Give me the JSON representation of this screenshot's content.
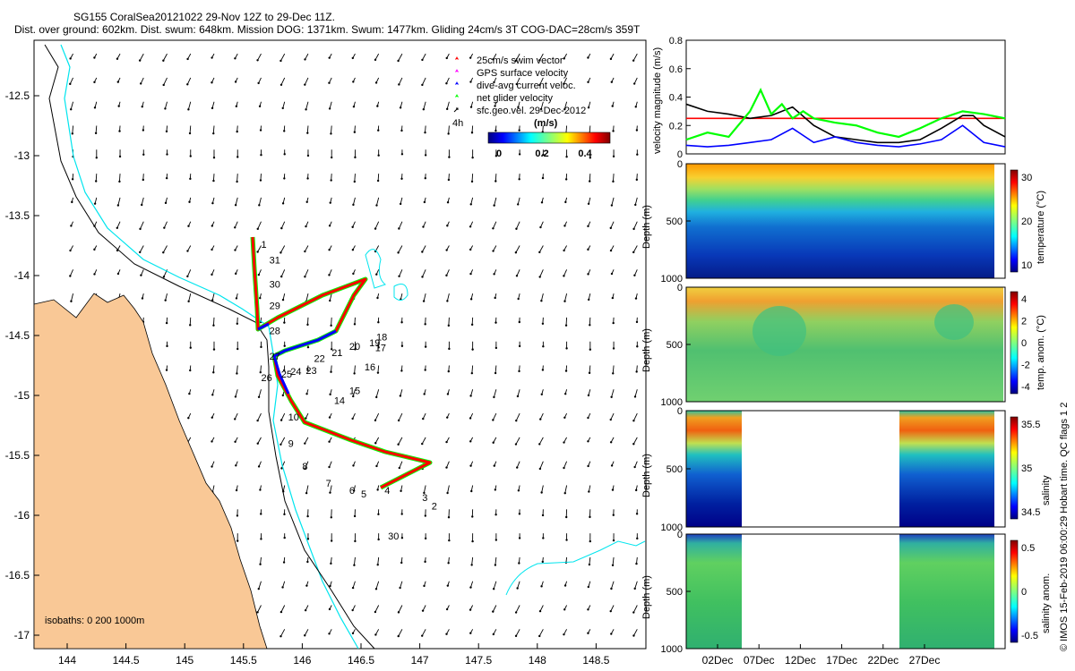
{
  "header": {
    "line1": "SG155 CoralSea20121022 29-Nov 12Z to 29-Dec 11Z.",
    "line2": "Dist. over ground: 602km. Dist. swum: 648km. Mission DOG: 1371km. Swum: 1477km. Gliding 24cm/s 3T COG-DAC=28cm/s 359T"
  },
  "credit": "© IMOS 15-Feb-2019 06:00:29 Hobart time. QC flags 1  2",
  "colors": {
    "land": "#f9c896",
    "isobath200": "#00e5ee",
    "isobath1000": "#000000",
    "track": "#ff0000",
    "dac": "#0000ff",
    "netvel": "#00ff00"
  },
  "map": {
    "legend": [
      {
        "label": "25cm/s swim vector",
        "icon": "red-star"
      },
      {
        "label": "GPS surface velocity",
        "icon": "magenta-star"
      },
      {
        "label": "dive-avg current veloc.",
        "icon": "blue-star"
      },
      {
        "label": "net glider velocity",
        "icon": "green-star"
      },
      {
        "label": "sfc.geo.vel. 29-Dec-2012",
        "icon": "black-arrow"
      }
    ],
    "four_h": "4h",
    "colorbar_title": "(m/s)",
    "colorbar_ticks": [
      "0",
      "0.2",
      "0.4"
    ],
    "isobaths_text": "isobaths: 0   200  1000m",
    "xticks": [
      "144",
      "144.5",
      "145",
      "145.5",
      "146",
      "146.5",
      "147",
      "147.5",
      "148",
      "148.5"
    ],
    "yticks": [
      "-12.5",
      "-13",
      "-13.5",
      "-14",
      "-14.5",
      "-15",
      "-15.5",
      "-16",
      "-16.5",
      "-17"
    ],
    "day_labels": [
      {
        "t": "1",
        "lon": 145.65,
        "lat": -13.77
      },
      {
        "t": "31",
        "lon": 145.72,
        "lat": -13.9
      },
      {
        "t": "30",
        "lon": 145.72,
        "lat": -14.1
      },
      {
        "t": "29",
        "lon": 145.72,
        "lat": -14.28
      },
      {
        "t": "28",
        "lon": 145.72,
        "lat": -14.49
      },
      {
        "t": "27",
        "lon": 145.72,
        "lat": -14.7
      },
      {
        "t": "26",
        "lon": 145.65,
        "lat": -14.88
      },
      {
        "t": "25",
        "lon": 145.82,
        "lat": -14.85
      },
      {
        "t": "24",
        "lon": 145.9,
        "lat": -14.83
      },
      {
        "t": "23",
        "lon": 146.03,
        "lat": -14.82
      },
      {
        "t": "22",
        "lon": 146.1,
        "lat": -14.72
      },
      {
        "t": "21",
        "lon": 146.25,
        "lat": -14.67
      },
      {
        "t": "20",
        "lon": 146.4,
        "lat": -14.62
      },
      {
        "t": "19",
        "lon": 146.57,
        "lat": -14.59
      },
      {
        "t": "18",
        "lon": 146.63,
        "lat": -14.54
      },
      {
        "t": "17",
        "lon": 146.62,
        "lat": -14.63
      },
      {
        "t": "16",
        "lon": 146.53,
        "lat": -14.79
      },
      {
        "t": "15",
        "lon": 146.4,
        "lat": -14.99
      },
      {
        "t": "14",
        "lon": 146.27,
        "lat": -15.07
      },
      {
        "t": "10",
        "lon": 145.88,
        "lat": -15.21
      },
      {
        "t": "9",
        "lon": 145.88,
        "lat": -15.43
      },
      {
        "t": "8",
        "lon": 146.0,
        "lat": -15.62
      },
      {
        "t": "7",
        "lon": 146.2,
        "lat": -15.76
      },
      {
        "t": "6",
        "lon": 146.4,
        "lat": -15.82
      },
      {
        "t": "5",
        "lon": 146.5,
        "lat": -15.85
      },
      {
        "t": "4",
        "lon": 146.7,
        "lat": -15.82
      },
      {
        "t": "3",
        "lon": 147.02,
        "lat": -15.88
      },
      {
        "t": "2",
        "lon": 147.1,
        "lat": -15.95
      },
      {
        "t": "30",
        "lon": 146.73,
        "lat": -16.2
      }
    ]
  },
  "chart_data": [
    {
      "type": "line",
      "title": "",
      "ylabel": "velocity magnitude (m/s)",
      "ylim": [
        0,
        0.8
      ],
      "yticks": [
        "0",
        "0.2",
        "0.4",
        "0.6",
        "0.8"
      ],
      "x_range": [
        "29-Nov-2012",
        "29-Dec-2012"
      ],
      "series": [
        {
          "color": "#ff0000",
          "x_day": [
            0,
            30
          ],
          "values": [
            0.25,
            0.25
          ]
        },
        {
          "color": "#000000",
          "x_day": [
            0,
            2,
            4,
            6,
            8,
            10,
            12,
            14,
            16,
            18,
            20,
            22,
            24,
            26,
            27,
            28,
            30
          ],
          "values": [
            0.35,
            0.3,
            0.28,
            0.25,
            0.27,
            0.33,
            0.2,
            0.12,
            0.1,
            0.08,
            0.08,
            0.1,
            0.18,
            0.27,
            0.27,
            0.2,
            0.12
          ]
        },
        {
          "color": "#0000ff",
          "x_day": [
            0,
            2,
            4,
            6,
            8,
            10,
            12,
            14,
            16,
            18,
            20,
            22,
            24,
            26,
            28,
            30
          ],
          "values": [
            0.06,
            0.05,
            0.06,
            0.08,
            0.1,
            0.18,
            0.08,
            0.12,
            0.08,
            0.06,
            0.05,
            0.07,
            0.1,
            0.2,
            0.08,
            0.05
          ]
        },
        {
          "color": "#00ff00",
          "x_day": [
            0,
            2,
            4,
            6,
            7,
            8,
            9,
            10,
            11,
            12,
            14,
            16,
            18,
            20,
            22,
            24,
            26,
            28,
            30
          ],
          "values": [
            0.1,
            0.15,
            0.12,
            0.3,
            0.45,
            0.28,
            0.35,
            0.25,
            0.3,
            0.25,
            0.22,
            0.2,
            0.15,
            0.12,
            0.18,
            0.25,
            0.3,
            0.28,
            0.25
          ]
        }
      ]
    },
    {
      "type": "heatmap",
      "ylabel": "Depth (m)",
      "ylim": [
        1000,
        0
      ],
      "yticks": [
        "0",
        "500",
        "1000"
      ],
      "colorbar_label": "temperature (°C)",
      "colorbar_ticks": [
        "30",
        "20",
        "10"
      ]
    },
    {
      "type": "heatmap",
      "ylabel": "Depth (m)",
      "ylim": [
        1000,
        0
      ],
      "yticks": [
        "0",
        "500",
        "1000"
      ],
      "colorbar_label": "temp. anom. (°C)",
      "colorbar_ticks": [
        "4",
        "2",
        "0",
        "-2",
        "-4"
      ]
    },
    {
      "type": "heatmap",
      "ylabel": "Depth (m)",
      "ylim": [
        1000,
        0
      ],
      "yticks": [
        "0",
        "500",
        "1000"
      ],
      "colorbar_label": "salinity",
      "colorbar_ticks": [
        "35.5",
        "35",
        "34.5"
      ]
    },
    {
      "type": "heatmap",
      "ylabel": "Depth (m)",
      "ylim": [
        1000,
        0
      ],
      "yticks": [
        "0",
        "500",
        "1000"
      ],
      "colorbar_label": "salinity anom.",
      "colorbar_ticks": [
        "0.5",
        "0",
        "-0.5"
      ],
      "xticks": [
        "02Dec",
        "07Dec",
        "12Dec",
        "17Dec",
        "22Dec",
        "27Dec"
      ]
    }
  ]
}
